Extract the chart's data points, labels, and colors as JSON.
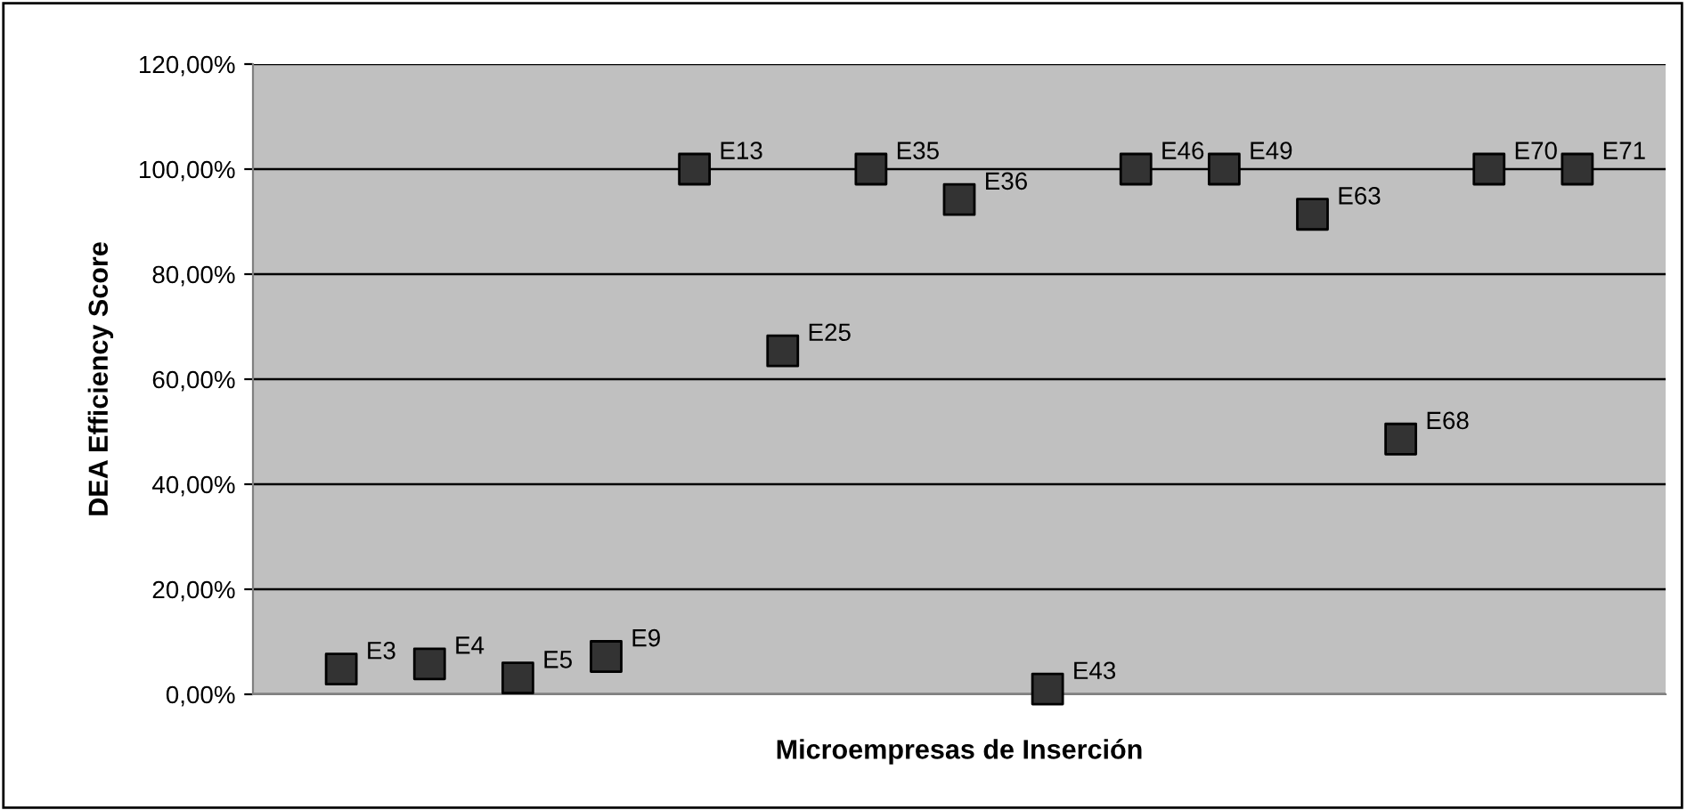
{
  "chart_data": {
    "type": "scatter",
    "xlabel": "Microempresas de Inserción",
    "ylabel": "DEA Efficiency Score",
    "categories": [
      null,
      null,
      null,
      null,
      null,
      null,
      null,
      null,
      null,
      null,
      null,
      null,
      null,
      null,
      null
    ],
    "values": [
      4.8,
      5.8,
      3.1,
      7.2,
      100,
      65.4,
      100,
      94.2,
      1,
      100,
      100,
      91.4,
      48.6,
      100,
      100
    ],
    "annotations": [
      "E3",
      "E4",
      "E5",
      "E9",
      "E13",
      "E25",
      "E35",
      "E36",
      "E43",
      "E46",
      "E49",
      "E63",
      "E68",
      "E70",
      "E71"
    ],
    "color": "#333333",
    "marker": "square",
    "grid": "y",
    "legend": false,
    "tick_labels": "y",
    "ylim": [
      0,
      120
    ],
    "yticks": [
      {
        "value": 0,
        "label": "0,00%"
      },
      {
        "value": 20,
        "label": "20,00%"
      },
      {
        "value": 40,
        "label": "40,00%"
      },
      {
        "value": 60,
        "label": "60,00%"
      },
      {
        "value": 80,
        "label": "80,00%"
      },
      {
        "value": 100,
        "label": "100,00%"
      },
      {
        "value": 120,
        "label": "120,00%"
      }
    ]
  }
}
